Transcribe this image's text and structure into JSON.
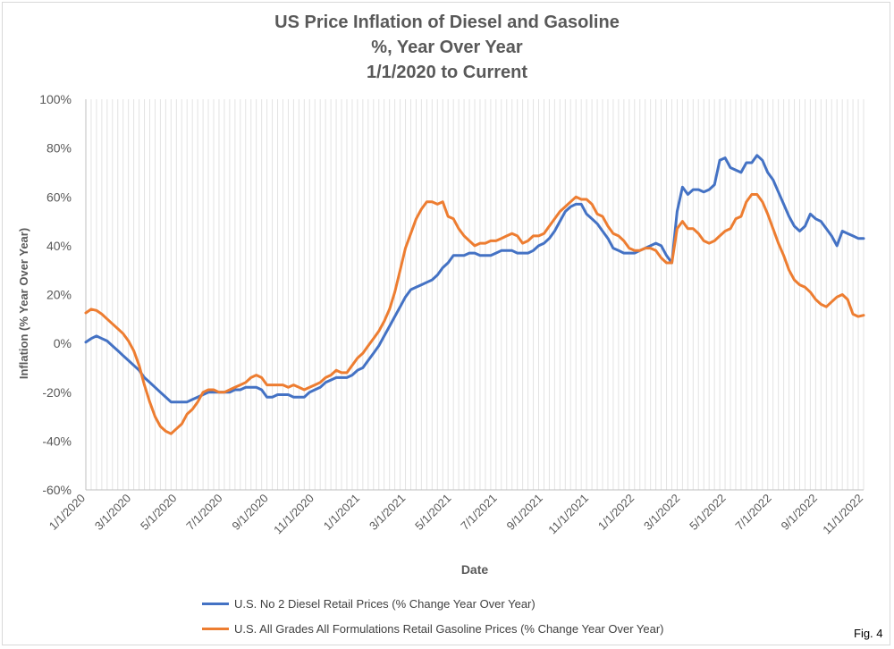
{
  "chart_data": {
    "type": "line",
    "title": [
      "US Price Inflation of Diesel and Gasoline",
      "%, Year Over Year",
      "1/1/2020 to Current"
    ],
    "xlabel": "Date",
    "ylabel": "Inflation (%  Year Over Year)",
    "ylim": [
      -60,
      100
    ],
    "yticks": [
      "100%",
      "80%",
      "60%",
      "40%",
      "20%",
      "0%",
      "-20%",
      "-40%",
      "-60%"
    ],
    "xticks": [
      "1/1/2020",
      "3/1/2020",
      "5/1/2020",
      "7/1/2020",
      "9/1/2020",
      "11/1/2020",
      "1/1/2021",
      "3/1/2021",
      "5/1/2021",
      "7/1/2021",
      "9/1/2021",
      "11/1/2021",
      "1/1/2022",
      "3/1/2022",
      "5/1/2022",
      "7/1/2022",
      "9/1/2022",
      "11/1/2022"
    ],
    "x_unit": "weeks from 1/1/2020",
    "grid": "vertical",
    "legend_position": "bottom",
    "series": [
      {
        "name": "U.S. No 2 Diesel Retail Prices (% Change Year Over Year)",
        "color": "#4472c4",
        "points": [
          [
            0,
            0.5
          ],
          [
            1,
            2
          ],
          [
            2,
            3
          ],
          [
            3,
            2
          ],
          [
            4,
            1
          ],
          [
            5,
            -1
          ],
          [
            6,
            -3
          ],
          [
            7,
            -5
          ],
          [
            8,
            -7
          ],
          [
            9,
            -9
          ],
          [
            10,
            -11
          ],
          [
            11,
            -14
          ],
          [
            12,
            -16
          ],
          [
            13,
            -18
          ],
          [
            14,
            -20
          ],
          [
            15,
            -22
          ],
          [
            16,
            -24
          ],
          [
            17,
            -24
          ],
          [
            18,
            -24
          ],
          [
            19,
            -24
          ],
          [
            20,
            -23
          ],
          [
            21,
            -22
          ],
          [
            22,
            -21
          ],
          [
            23,
            -20
          ],
          [
            24,
            -20
          ],
          [
            25,
            -20
          ],
          [
            26,
            -20
          ],
          [
            27,
            -20
          ],
          [
            28,
            -19
          ],
          [
            29,
            -19
          ],
          [
            30,
            -18
          ],
          [
            31,
            -18
          ],
          [
            32,
            -18
          ],
          [
            33,
            -19
          ],
          [
            34,
            -22
          ],
          [
            35,
            -22
          ],
          [
            36,
            -21
          ],
          [
            37,
            -21
          ],
          [
            38,
            -21
          ],
          [
            39,
            -22
          ],
          [
            40,
            -22
          ],
          [
            41,
            -22
          ],
          [
            42,
            -20
          ],
          [
            43,
            -19
          ],
          [
            44,
            -18
          ],
          [
            45,
            -16
          ],
          [
            46,
            -15
          ],
          [
            47,
            -14
          ],
          [
            48,
            -14
          ],
          [
            49,
            -14
          ],
          [
            50,
            -13
          ],
          [
            51,
            -11
          ],
          [
            52,
            -10
          ],
          [
            53,
            -7
          ],
          [
            54,
            -4
          ],
          [
            55,
            -1
          ],
          [
            56,
            3
          ],
          [
            57,
            7
          ],
          [
            58,
            11
          ],
          [
            59,
            15
          ],
          [
            60,
            19
          ],
          [
            61,
            22
          ],
          [
            62,
            23
          ],
          [
            63,
            24
          ],
          [
            64,
            25
          ],
          [
            65,
            26
          ],
          [
            66,
            28
          ],
          [
            67,
            31
          ],
          [
            68,
            33
          ],
          [
            69,
            36
          ],
          [
            70,
            36
          ],
          [
            71,
            36
          ],
          [
            72,
            37
          ],
          [
            73,
            37
          ],
          [
            74,
            36
          ],
          [
            75,
            36
          ],
          [
            76,
            36
          ],
          [
            77,
            37
          ],
          [
            78,
            38
          ],
          [
            79,
            38
          ],
          [
            80,
            38
          ],
          [
            81,
            37
          ],
          [
            82,
            37
          ],
          [
            83,
            37
          ],
          [
            84,
            38
          ],
          [
            85,
            40
          ],
          [
            86,
            41
          ],
          [
            87,
            43
          ],
          [
            88,
            46
          ],
          [
            89,
            50
          ],
          [
            90,
            54
          ],
          [
            91,
            56
          ],
          [
            92,
            57
          ],
          [
            93,
            57
          ],
          [
            94,
            53
          ],
          [
            95,
            51
          ],
          [
            96,
            49
          ],
          [
            97,
            46
          ],
          [
            98,
            43
          ],
          [
            99,
            39
          ],
          [
            100,
            38
          ],
          [
            101,
            37
          ],
          [
            102,
            37
          ],
          [
            103,
            37
          ],
          [
            104,
            38
          ],
          [
            105,
            39
          ],
          [
            106,
            40
          ],
          [
            107,
            41
          ],
          [
            108,
            40
          ],
          [
            109,
            36
          ],
          [
            110,
            33
          ],
          [
            111,
            54
          ],
          [
            112,
            64
          ],
          [
            113,
            61
          ],
          [
            114,
            63
          ],
          [
            115,
            63
          ],
          [
            116,
            62
          ],
          [
            117,
            63
          ],
          [
            118,
            65
          ],
          [
            119,
            75
          ],
          [
            120,
            76
          ],
          [
            121,
            72
          ],
          [
            122,
            71
          ],
          [
            123,
            70
          ],
          [
            124,
            74
          ],
          [
            125,
            74
          ],
          [
            126,
            77
          ],
          [
            127,
            75
          ],
          [
            128,
            70
          ],
          [
            129,
            67
          ],
          [
            130,
            62
          ],
          [
            131,
            57
          ],
          [
            132,
            52
          ],
          [
            133,
            48
          ],
          [
            134,
            46
          ],
          [
            135,
            48
          ],
          [
            136,
            53
          ],
          [
            137,
            51
          ],
          [
            138,
            50
          ],
          [
            139,
            47
          ],
          [
            140,
            44
          ],
          [
            141,
            40
          ],
          [
            142,
            46
          ],
          [
            143,
            45
          ],
          [
            144,
            44
          ],
          [
            145,
            43
          ],
          [
            146,
            43
          ]
        ]
      },
      {
        "name": "U.S. All Grades All Formulations Retail Gasoline Prices (% Change Year Over Year)",
        "color": "#ed7d31",
        "points": [
          [
            0,
            12.5
          ],
          [
            1,
            14
          ],
          [
            2,
            13.5
          ],
          [
            3,
            12
          ],
          [
            4,
            10
          ],
          [
            5,
            8
          ],
          [
            6,
            6
          ],
          [
            7,
            4
          ],
          [
            8,
            1
          ],
          [
            9,
            -3
          ],
          [
            10,
            -9
          ],
          [
            11,
            -17
          ],
          [
            12,
            -24
          ],
          [
            13,
            -30
          ],
          [
            14,
            -34
          ],
          [
            15,
            -36
          ],
          [
            16,
            -37
          ],
          [
            17,
            -35
          ],
          [
            18,
            -33
          ],
          [
            19,
            -29
          ],
          [
            20,
            -27
          ],
          [
            21,
            -24
          ],
          [
            22,
            -20
          ],
          [
            23,
            -19
          ],
          [
            24,
            -19
          ],
          [
            25,
            -20
          ],
          [
            26,
            -20
          ],
          [
            27,
            -19
          ],
          [
            28,
            -18
          ],
          [
            29,
            -17
          ],
          [
            30,
            -16
          ],
          [
            31,
            -14
          ],
          [
            32,
            -13
          ],
          [
            33,
            -14
          ],
          [
            34,
            -17
          ],
          [
            35,
            -17
          ],
          [
            36,
            -17
          ],
          [
            37,
            -17
          ],
          [
            38,
            -18
          ],
          [
            39,
            -17
          ],
          [
            40,
            -18
          ],
          [
            41,
            -19
          ],
          [
            42,
            -18
          ],
          [
            43,
            -17
          ],
          [
            44,
            -16
          ],
          [
            45,
            -14
          ],
          [
            46,
            -13
          ],
          [
            47,
            -11
          ],
          [
            48,
            -12
          ],
          [
            49,
            -12
          ],
          [
            50,
            -9
          ],
          [
            51,
            -6
          ],
          [
            52,
            -4
          ],
          [
            53,
            -1
          ],
          [
            54,
            2
          ],
          [
            55,
            5
          ],
          [
            56,
            9
          ],
          [
            57,
            14
          ],
          [
            58,
            21
          ],
          [
            59,
            30
          ],
          [
            60,
            39
          ],
          [
            61,
            45
          ],
          [
            62,
            51
          ],
          [
            63,
            55
          ],
          [
            64,
            58
          ],
          [
            65,
            58
          ],
          [
            66,
            57
          ],
          [
            67,
            58
          ],
          [
            68,
            52
          ],
          [
            69,
            51
          ],
          [
            70,
            47
          ],
          [
            71,
            44
          ],
          [
            72,
            42
          ],
          [
            73,
            40
          ],
          [
            74,
            41
          ],
          [
            75,
            41
          ],
          [
            76,
            42
          ],
          [
            77,
            42
          ],
          [
            78,
            43
          ],
          [
            79,
            44
          ],
          [
            80,
            45
          ],
          [
            81,
            44
          ],
          [
            82,
            41
          ],
          [
            83,
            42
          ],
          [
            84,
            44
          ],
          [
            85,
            44
          ],
          [
            86,
            45
          ],
          [
            87,
            48
          ],
          [
            88,
            51
          ],
          [
            89,
            54
          ],
          [
            90,
            56
          ],
          [
            91,
            58
          ],
          [
            92,
            60
          ],
          [
            93,
            59
          ],
          [
            94,
            59
          ],
          [
            95,
            57
          ],
          [
            96,
            53
          ],
          [
            97,
            52
          ],
          [
            98,
            48
          ],
          [
            99,
            45
          ],
          [
            100,
            44
          ],
          [
            101,
            42
          ],
          [
            102,
            39
          ],
          [
            103,
            38
          ],
          [
            104,
            38
          ],
          [
            105,
            39
          ],
          [
            106,
            39
          ],
          [
            107,
            38
          ],
          [
            108,
            35
          ],
          [
            109,
            33
          ],
          [
            110,
            33
          ],
          [
            111,
            47
          ],
          [
            112,
            50
          ],
          [
            113,
            47
          ],
          [
            114,
            47
          ],
          [
            115,
            45
          ],
          [
            116,
            42
          ],
          [
            117,
            41
          ],
          [
            118,
            42
          ],
          [
            119,
            44
          ],
          [
            120,
            46
          ],
          [
            121,
            47
          ],
          [
            122,
            51
          ],
          [
            123,
            52
          ],
          [
            124,
            58
          ],
          [
            125,
            61
          ],
          [
            126,
            61
          ],
          [
            127,
            58
          ],
          [
            128,
            53
          ],
          [
            129,
            47
          ],
          [
            130,
            41
          ],
          [
            131,
            36
          ],
          [
            132,
            30
          ],
          [
            133,
            26
          ],
          [
            134,
            24
          ],
          [
            135,
            23
          ],
          [
            136,
            21
          ],
          [
            137,
            18
          ],
          [
            138,
            16
          ],
          [
            139,
            15
          ],
          [
            140,
            17
          ],
          [
            141,
            19
          ],
          [
            142,
            20
          ],
          [
            143,
            18
          ],
          [
            144,
            12
          ],
          [
            145,
            11
          ],
          [
            146,
            11.5
          ]
        ]
      }
    ]
  },
  "fig_label": "Fig. 4"
}
